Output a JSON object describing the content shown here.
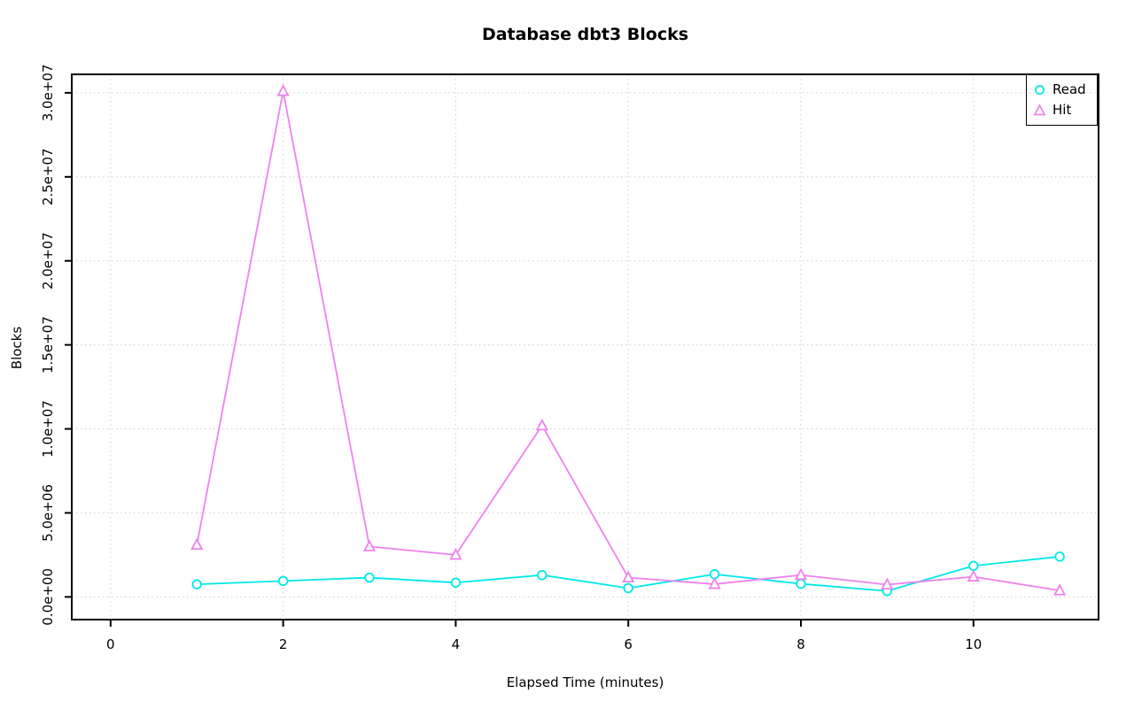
{
  "chart_data": {
    "type": "line",
    "title": "Database dbt3 Blocks",
    "xlabel": "Elapsed Time (minutes)",
    "ylabel": "Blocks",
    "x": [
      1,
      2,
      3,
      4,
      5,
      6,
      7,
      8,
      9,
      10,
      11
    ],
    "series": [
      {
        "name": "Read",
        "marker": "circle",
        "color": "#00E8E8",
        "values": [
          750000,
          950000,
          1150000,
          850000,
          1300000,
          520000,
          1350000,
          780000,
          350000,
          1850000,
          2400000
        ]
      },
      {
        "name": "Hit",
        "marker": "triangle",
        "color": "#EE82EE",
        "values": [
          3100000,
          30100000,
          3000000,
          2500000,
          10200000,
          1150000,
          760000,
          1300000,
          730000,
          1200000,
          380000
        ]
      }
    ],
    "xlim": [
      -0.45,
      11.45
    ],
    "ylim": [
      -1350000,
      31100000
    ],
    "xticks": {
      "values": [
        0,
        2,
        4,
        6,
        8,
        10
      ],
      "labels": [
        "0",
        "2",
        "4",
        "6",
        "8",
        "10"
      ]
    },
    "yticks": {
      "values": [
        0,
        5000000,
        10000000,
        15000000,
        20000000,
        25000000,
        30000000
      ],
      "labels": [
        "0.0e+00",
        "5.0e+06",
        "1.0e+07",
        "1.5e+07",
        "2.0e+07",
        "2.5e+07",
        "3.0e+07"
      ]
    },
    "grid": true,
    "grid_color": "#CFCFCF",
    "axis_color": "#000000",
    "legend": {
      "position": "topright",
      "entries": [
        "Read",
        "Hit"
      ]
    }
  }
}
